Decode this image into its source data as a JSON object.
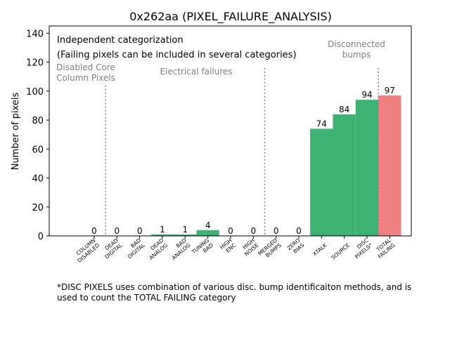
{
  "chart_data": {
    "type": "bar",
    "title": "0x262aa (PIXEL_FAILURE_ANALYSIS)",
    "xlabel": "",
    "ylabel": "Number of pixels",
    "ylim": [
      0,
      145
    ],
    "yticks": [
      0,
      20,
      40,
      60,
      80,
      100,
      120,
      140
    ],
    "grid": false,
    "categories": [
      [
        "COLUMN",
        "DISABLED"
      ],
      [
        "DEAD",
        "DIGITAL"
      ],
      [
        "BAD",
        "DIGITAL"
      ],
      [
        "DEAD",
        "ANALOG"
      ],
      [
        "BAD",
        "ANALOG"
      ],
      [
        "TUNING",
        "BAD"
      ],
      [
        "HIGH",
        "ENC"
      ],
      [
        "HIGH",
        "NOISE"
      ],
      [
        "MERGED",
        "BUMPS"
      ],
      [
        "ZERO",
        "BIAS"
      ],
      [
        "XTALK"
      ],
      [
        "SOURCE"
      ],
      [
        "DISC",
        "PIXELS*"
      ],
      [
        "TOTAL",
        "FAILING"
      ]
    ],
    "values": [
      0,
      0,
      0,
      1,
      1,
      4,
      0,
      0,
      0,
      0,
      74,
      84,
      94,
      97
    ],
    "bar_colors": [
      "#3cb371",
      "#3cb371",
      "#3cb371",
      "#3cb371",
      "#3cb371",
      "#3cb371",
      "#3cb371",
      "#3cb371",
      "#3cb371",
      "#3cb371",
      "#3cb371",
      "#3cb371",
      "#3cb371",
      "#f08080"
    ],
    "separators_after_index": [
      0,
      7,
      12
    ],
    "section_labels": [
      {
        "lines": [
          "Disabled Core",
          "Column Pixels"
        ]
      },
      {
        "lines": [
          "Electrical failures"
        ]
      },
      {
        "lines": [
          "Disconnected",
          "bumps"
        ]
      }
    ],
    "annotations": [
      "Independent categorization",
      "(Failing pixels can be included in several categories)"
    ],
    "footnote": [
      "*DISC PIXELS uses combination of various disc. bump identificaiton methods, and is",
      "used to count the TOTAL FAILING category"
    ]
  }
}
